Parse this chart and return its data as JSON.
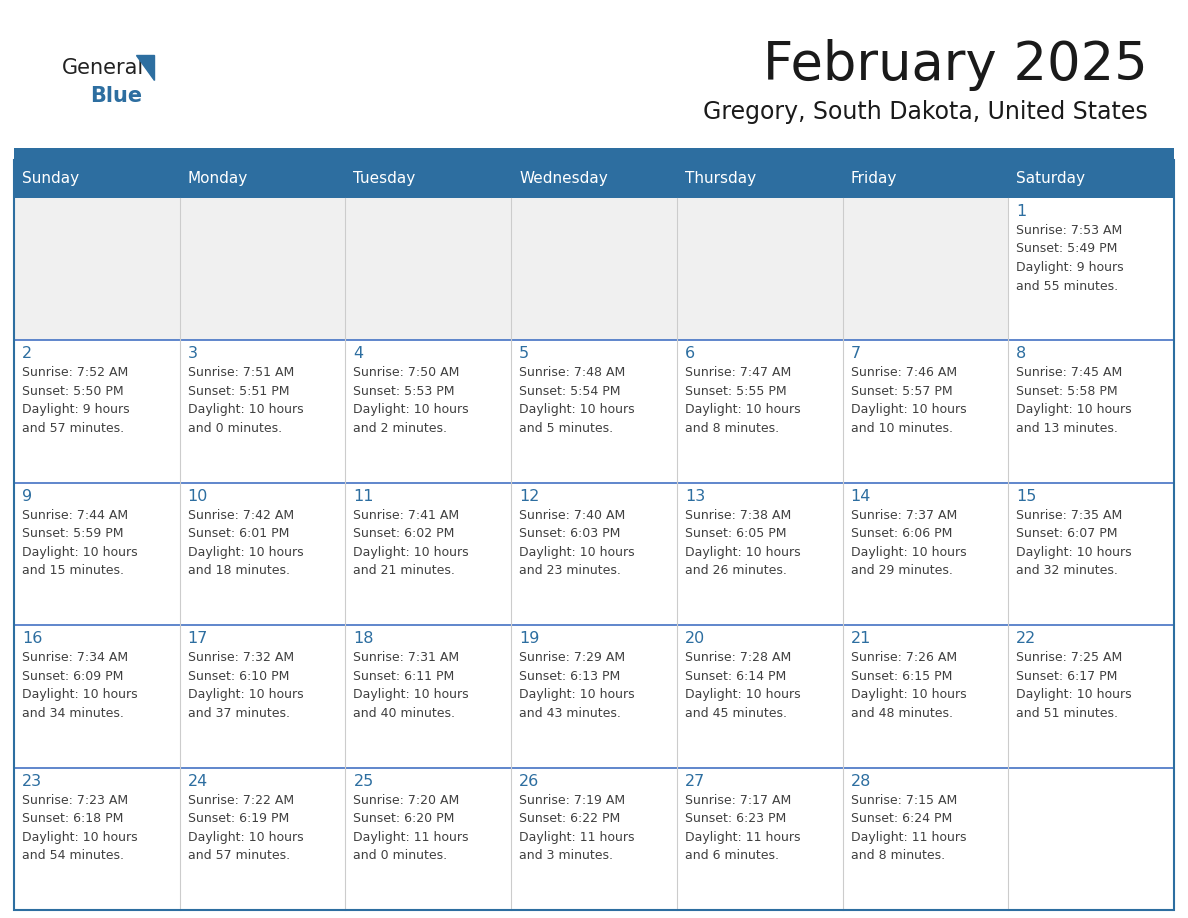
{
  "title": "February 2025",
  "subtitle": "Gregory, South Dakota, United States",
  "header_bg_color": "#2D6EA0",
  "header_text_color": "#FFFFFF",
  "day_names": [
    "Sunday",
    "Monday",
    "Tuesday",
    "Wednesday",
    "Thursday",
    "Friday",
    "Saturday"
  ],
  "cell_bg_white": "#FFFFFF",
  "cell_bg_gray": "#F0F0F0",
  "border_color": "#2D6EA0",
  "row_div_color": "#4472C4",
  "date_color": "#2D6EA0",
  "info_color": "#404040",
  "logo_general_color": "#222222",
  "logo_blue_color": "#2D6EA0",
  "fig_width": 11.88,
  "fig_height": 9.18,
  "days": [
    {
      "date": 1,
      "row": 0,
      "col": 6,
      "sunrise": "7:53 AM",
      "sunset": "5:49 PM",
      "daylight_h": "9 hours",
      "daylight_m": "and 55 minutes."
    },
    {
      "date": 2,
      "row": 1,
      "col": 0,
      "sunrise": "7:52 AM",
      "sunset": "5:50 PM",
      "daylight_h": "9 hours",
      "daylight_m": "and 57 minutes."
    },
    {
      "date": 3,
      "row": 1,
      "col": 1,
      "sunrise": "7:51 AM",
      "sunset": "5:51 PM",
      "daylight_h": "10 hours",
      "daylight_m": "and 0 minutes."
    },
    {
      "date": 4,
      "row": 1,
      "col": 2,
      "sunrise": "7:50 AM",
      "sunset": "5:53 PM",
      "daylight_h": "10 hours",
      "daylight_m": "and 2 minutes."
    },
    {
      "date": 5,
      "row": 1,
      "col": 3,
      "sunrise": "7:48 AM",
      "sunset": "5:54 PM",
      "daylight_h": "10 hours",
      "daylight_m": "and 5 minutes."
    },
    {
      "date": 6,
      "row": 1,
      "col": 4,
      "sunrise": "7:47 AM",
      "sunset": "5:55 PM",
      "daylight_h": "10 hours",
      "daylight_m": "and 8 minutes."
    },
    {
      "date": 7,
      "row": 1,
      "col": 5,
      "sunrise": "7:46 AM",
      "sunset": "5:57 PM",
      "daylight_h": "10 hours",
      "daylight_m": "and 10 minutes."
    },
    {
      "date": 8,
      "row": 1,
      "col": 6,
      "sunrise": "7:45 AM",
      "sunset": "5:58 PM",
      "daylight_h": "10 hours",
      "daylight_m": "and 13 minutes."
    },
    {
      "date": 9,
      "row": 2,
      "col": 0,
      "sunrise": "7:44 AM",
      "sunset": "5:59 PM",
      "daylight_h": "10 hours",
      "daylight_m": "and 15 minutes."
    },
    {
      "date": 10,
      "row": 2,
      "col": 1,
      "sunrise": "7:42 AM",
      "sunset": "6:01 PM",
      "daylight_h": "10 hours",
      "daylight_m": "and 18 minutes."
    },
    {
      "date": 11,
      "row": 2,
      "col": 2,
      "sunrise": "7:41 AM",
      "sunset": "6:02 PM",
      "daylight_h": "10 hours",
      "daylight_m": "and 21 minutes."
    },
    {
      "date": 12,
      "row": 2,
      "col": 3,
      "sunrise": "7:40 AM",
      "sunset": "6:03 PM",
      "daylight_h": "10 hours",
      "daylight_m": "and 23 minutes."
    },
    {
      "date": 13,
      "row": 2,
      "col": 4,
      "sunrise": "7:38 AM",
      "sunset": "6:05 PM",
      "daylight_h": "10 hours",
      "daylight_m": "and 26 minutes."
    },
    {
      "date": 14,
      "row": 2,
      "col": 5,
      "sunrise": "7:37 AM",
      "sunset": "6:06 PM",
      "daylight_h": "10 hours",
      "daylight_m": "and 29 minutes."
    },
    {
      "date": 15,
      "row": 2,
      "col": 6,
      "sunrise": "7:35 AM",
      "sunset": "6:07 PM",
      "daylight_h": "10 hours",
      "daylight_m": "and 32 minutes."
    },
    {
      "date": 16,
      "row": 3,
      "col": 0,
      "sunrise": "7:34 AM",
      "sunset": "6:09 PM",
      "daylight_h": "10 hours",
      "daylight_m": "and 34 minutes."
    },
    {
      "date": 17,
      "row": 3,
      "col": 1,
      "sunrise": "7:32 AM",
      "sunset": "6:10 PM",
      "daylight_h": "10 hours",
      "daylight_m": "and 37 minutes."
    },
    {
      "date": 18,
      "row": 3,
      "col": 2,
      "sunrise": "7:31 AM",
      "sunset": "6:11 PM",
      "daylight_h": "10 hours",
      "daylight_m": "and 40 minutes."
    },
    {
      "date": 19,
      "row": 3,
      "col": 3,
      "sunrise": "7:29 AM",
      "sunset": "6:13 PM",
      "daylight_h": "10 hours",
      "daylight_m": "and 43 minutes."
    },
    {
      "date": 20,
      "row": 3,
      "col": 4,
      "sunrise": "7:28 AM",
      "sunset": "6:14 PM",
      "daylight_h": "10 hours",
      "daylight_m": "and 45 minutes."
    },
    {
      "date": 21,
      "row": 3,
      "col": 5,
      "sunrise": "7:26 AM",
      "sunset": "6:15 PM",
      "daylight_h": "10 hours",
      "daylight_m": "and 48 minutes."
    },
    {
      "date": 22,
      "row": 3,
      "col": 6,
      "sunrise": "7:25 AM",
      "sunset": "6:17 PM",
      "daylight_h": "10 hours",
      "daylight_m": "and 51 minutes."
    },
    {
      "date": 23,
      "row": 4,
      "col": 0,
      "sunrise": "7:23 AM",
      "sunset": "6:18 PM",
      "daylight_h": "10 hours",
      "daylight_m": "and 54 minutes."
    },
    {
      "date": 24,
      "row": 4,
      "col": 1,
      "sunrise": "7:22 AM",
      "sunset": "6:19 PM",
      "daylight_h": "10 hours",
      "daylight_m": "and 57 minutes."
    },
    {
      "date": 25,
      "row": 4,
      "col": 2,
      "sunrise": "7:20 AM",
      "sunset": "6:20 PM",
      "daylight_h": "11 hours",
      "daylight_m": "and 0 minutes."
    },
    {
      "date": 26,
      "row": 4,
      "col": 3,
      "sunrise": "7:19 AM",
      "sunset": "6:22 PM",
      "daylight_h": "11 hours",
      "daylight_m": "and 3 minutes."
    },
    {
      "date": 27,
      "row": 4,
      "col": 4,
      "sunrise": "7:17 AM",
      "sunset": "6:23 PM",
      "daylight_h": "11 hours",
      "daylight_m": "and 6 minutes."
    },
    {
      "date": 28,
      "row": 4,
      "col": 5,
      "sunrise": "7:15 AM",
      "sunset": "6:24 PM",
      "daylight_h": "11 hours",
      "daylight_m": "and 8 minutes."
    }
  ]
}
